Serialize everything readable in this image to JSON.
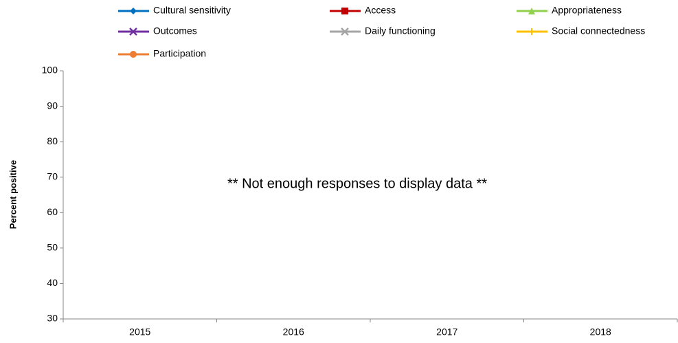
{
  "chart_data": {
    "type": "line",
    "y_label": "Percent positive",
    "annotation": "** Not enough responses to display data **",
    "categories": [
      "2015",
      "2016",
      "2017",
      "2018"
    ],
    "ylim": [
      30,
      100
    ],
    "yticks": [
      30,
      40,
      50,
      60,
      70,
      80,
      90,
      100
    ],
    "series": [
      {
        "name": "Cultural sensitivity",
        "color": "#0070c0",
        "marker": "diamond",
        "values": [
          null,
          null,
          null,
          null
        ]
      },
      {
        "name": "Access",
        "color": "#c00000",
        "marker": "square",
        "values": [
          null,
          null,
          null,
          null
        ]
      },
      {
        "name": "Appropriateness",
        "color": "#92d050",
        "marker": "triangle",
        "values": [
          null,
          null,
          null,
          null
        ]
      },
      {
        "name": "Outcomes",
        "color": "#7030a0",
        "marker": "x",
        "values": [
          null,
          null,
          null,
          null
        ]
      },
      {
        "name": "Daily functioning",
        "color": "#a5a5a5",
        "marker": "x",
        "values": [
          null,
          null,
          null,
          null
        ]
      },
      {
        "name": "Social connectedness",
        "color": "#ffc000",
        "marker": "plus",
        "values": [
          null,
          null,
          null,
          null
        ]
      },
      {
        "name": "Participation",
        "color": "#ed7d31",
        "marker": "circle",
        "values": [
          null,
          null,
          null,
          null
        ]
      }
    ]
  }
}
